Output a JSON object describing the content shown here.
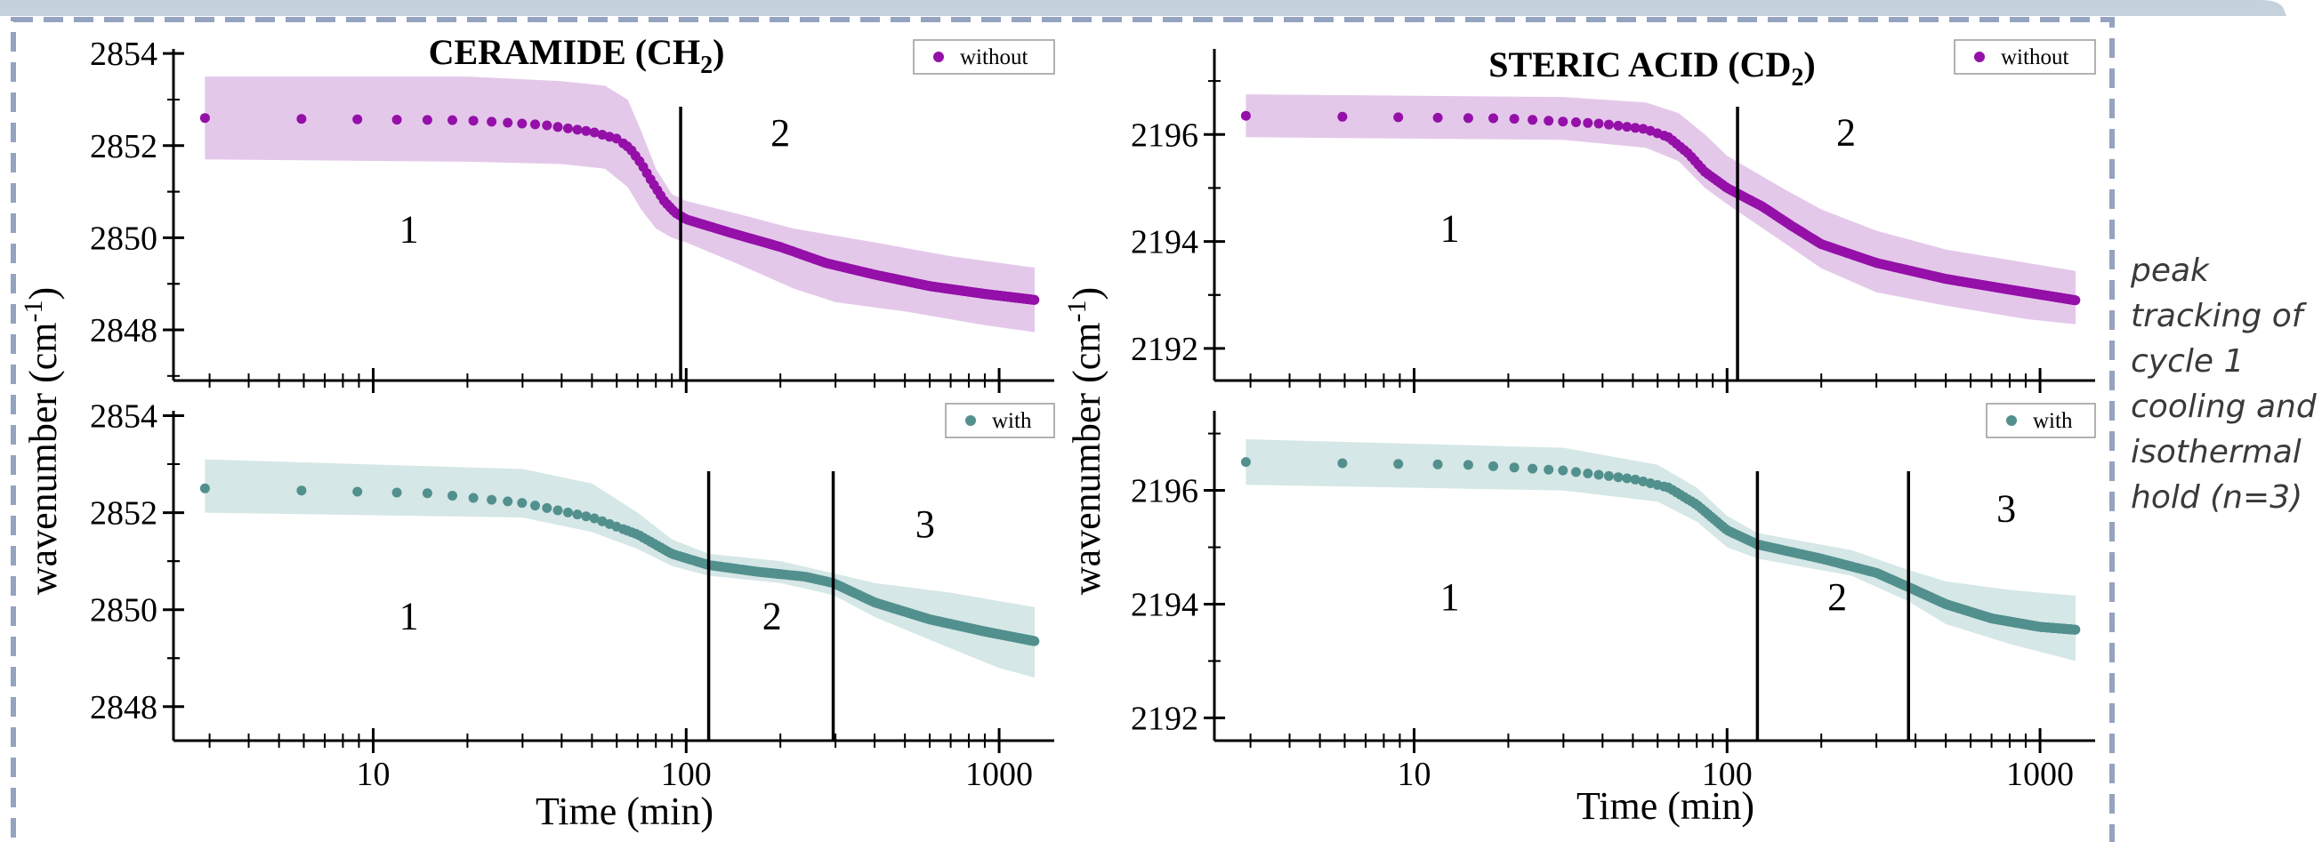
{
  "colors": {
    "without": "#9410a8",
    "without_band": "#e4c8ea",
    "with": "#52908e",
    "with_band": "#d5e7e6",
    "frame": "#94a3bf",
    "axis": "#000000"
  },
  "side_note": [
    "peak",
    "tracking of",
    "cycle 1",
    "cooling and",
    "isothermal",
    "hold (n=3)"
  ],
  "chart_data": [
    {
      "id": "ceramide_without",
      "type": "scatter",
      "title": "CERAMIDE (CH",
      "title_sub": "2",
      "title_close": ")",
      "legend": "without",
      "legend_placement": "top-right",
      "xscale": "log",
      "xlim": [
        2.3,
        1500
      ],
      "ylim": [
        2846.9,
        2854.1
      ],
      "yticks": [
        "2848",
        "2850",
        "2852",
        "2854"
      ],
      "xticks": [
        "10",
        "100",
        "1000"
      ],
      "xlabel": "",
      "boundaries": [
        96
      ],
      "regions": [
        {
          "label": "1",
          "x": 13,
          "y": 2849.9
        },
        {
          "label": "2",
          "x": 200,
          "y": 2852.0
        }
      ],
      "series": [
        {
          "name": "without",
          "color": "without",
          "band": "without_band",
          "curve": [
            [
              2.9,
              2852.6
            ],
            [
              20,
              2852.55
            ],
            [
              35,
              2852.45
            ],
            [
              50,
              2852.3
            ],
            [
              60,
              2852.15
            ],
            [
              66,
              2851.95
            ],
            [
              72,
              2851.6
            ],
            [
              78,
              2851.2
            ],
            [
              85,
              2850.8
            ],
            [
              92,
              2850.55
            ],
            [
              100,
              2850.4
            ],
            [
              140,
              2850.1
            ],
            [
              200,
              2849.8
            ],
            [
              280,
              2849.45
            ],
            [
              400,
              2849.2
            ],
            [
              600,
              2848.95
            ],
            [
              900,
              2848.78
            ],
            [
              1300,
              2848.65
            ]
          ],
          "band_hi": [
            [
              2.9,
              2853.5
            ],
            [
              20,
              2853.5
            ],
            [
              40,
              2853.4
            ],
            [
              55,
              2853.3
            ],
            [
              65,
              2853.0
            ],
            [
              72,
              2852.3
            ],
            [
              80,
              2851.5
            ],
            [
              90,
              2850.95
            ],
            [
              100,
              2850.8
            ],
            [
              150,
              2850.5
            ],
            [
              220,
              2850.2
            ],
            [
              400,
              2849.9
            ],
            [
              700,
              2849.6
            ],
            [
              1300,
              2849.35
            ]
          ],
          "band_lo": [
            [
              2.9,
              2851.7
            ],
            [
              20,
              2851.65
            ],
            [
              40,
              2851.6
            ],
            [
              55,
              2851.5
            ],
            [
              65,
              2851.1
            ],
            [
              72,
              2850.6
            ],
            [
              80,
              2850.2
            ],
            [
              90,
              2850.0
            ],
            [
              100,
              2849.9
            ],
            [
              150,
              2849.4
            ],
            [
              220,
              2848.9
            ],
            [
              300,
              2848.6
            ],
            [
              500,
              2848.4
            ],
            [
              900,
              2848.1
            ],
            [
              1300,
              2847.95
            ]
          ]
        }
      ]
    },
    {
      "id": "ceramide_with",
      "type": "scatter",
      "legend": "with",
      "legend_placement": "top-right",
      "xscale": "log",
      "xlim": [
        2.3,
        1500
      ],
      "ylim": [
        2847.3,
        2854.1
      ],
      "yticks": [
        "2848",
        "2850",
        "2852",
        "2854"
      ],
      "xticks": [
        "10",
        "100",
        "1000"
      ],
      "xlabel": "Time (min)",
      "boundaries": [
        118,
        295
      ],
      "regions": [
        {
          "label": "1",
          "x": 13,
          "y": 2849.6
        },
        {
          "label": "2",
          "x": 188,
          "y": 2849.6
        },
        {
          "label": "3",
          "x": 580,
          "y": 2851.5
        }
      ],
      "series": [
        {
          "name": "with",
          "color": "with",
          "band": "with_band",
          "curve": [
            [
              2.9,
              2852.5
            ],
            [
              15,
              2852.4
            ],
            [
              30,
              2852.2
            ],
            [
              50,
              2851.9
            ],
            [
              70,
              2851.55
            ],
            [
              90,
              2851.15
            ],
            [
              118,
              2850.92
            ],
            [
              170,
              2850.78
            ],
            [
              240,
              2850.68
            ],
            [
              295,
              2850.55
            ],
            [
              400,
              2850.15
            ],
            [
              600,
              2849.8
            ],
            [
              900,
              2849.55
            ],
            [
              1300,
              2849.35
            ]
          ],
          "band_hi": [
            [
              2.9,
              2853.1
            ],
            [
              30,
              2852.9
            ],
            [
              50,
              2852.6
            ],
            [
              70,
              2852.0
            ],
            [
              90,
              2851.45
            ],
            [
              118,
              2851.15
            ],
            [
              200,
              2851.0
            ],
            [
              295,
              2850.75
            ],
            [
              400,
              2850.55
            ],
            [
              700,
              2850.35
            ],
            [
              1300,
              2850.05
            ]
          ],
          "band_lo": [
            [
              2.9,
              2852.0
            ],
            [
              30,
              2851.9
            ],
            [
              50,
              2851.6
            ],
            [
              70,
              2851.25
            ],
            [
              90,
              2850.9
            ],
            [
              118,
              2850.7
            ],
            [
              200,
              2850.55
            ],
            [
              295,
              2850.3
            ],
            [
              400,
              2849.85
            ],
            [
              700,
              2849.2
            ],
            [
              1000,
              2848.8
            ],
            [
              1300,
              2848.6
            ]
          ]
        }
      ]
    },
    {
      "id": "steric_without",
      "type": "scatter",
      "title": "STERIC ACID (CD",
      "title_sub": "2",
      "title_close": ")",
      "legend": "without",
      "legend_placement": "top-right",
      "xscale": "log",
      "xlim": [
        2.3,
        1500
      ],
      "ylim": [
        2191.4,
        2197.6
      ],
      "yticks": [
        "2192",
        "2194",
        "2196"
      ],
      "xticks": [
        "10",
        "100",
        "1000"
      ],
      "xlabel": "",
      "boundaries": [
        108
      ],
      "regions": [
        {
          "label": "1",
          "x": 13,
          "y": 2194.0
        },
        {
          "label": "2",
          "x": 240,
          "y": 2195.8
        }
      ],
      "series": [
        {
          "name": "without",
          "color": "without",
          "band": "without_band",
          "curve": [
            [
              2.9,
              2196.35
            ],
            [
              20,
              2196.3
            ],
            [
              40,
              2196.2
            ],
            [
              55,
              2196.1
            ],
            [
              65,
              2195.95
            ],
            [
              75,
              2195.65
            ],
            [
              85,
              2195.3
            ],
            [
              100,
              2195.0
            ],
            [
              130,
              2194.65
            ],
            [
              160,
              2194.3
            ],
            [
              200,
              2193.95
            ],
            [
              300,
              2193.6
            ],
            [
              500,
              2193.3
            ],
            [
              800,
              2193.1
            ],
            [
              1300,
              2192.9
            ]
          ],
          "band_hi": [
            [
              2.9,
              2196.75
            ],
            [
              30,
              2196.7
            ],
            [
              55,
              2196.6
            ],
            [
              70,
              2196.4
            ],
            [
              85,
              2196.0
            ],
            [
              100,
              2195.6
            ],
            [
              150,
              2195.0
            ],
            [
              200,
              2194.6
            ],
            [
              300,
              2194.2
            ],
            [
              500,
              2193.85
            ],
            [
              1300,
              2193.45
            ]
          ],
          "band_lo": [
            [
              2.9,
              2195.95
            ],
            [
              30,
              2195.9
            ],
            [
              55,
              2195.75
            ],
            [
              70,
              2195.5
            ],
            [
              85,
              2195.0
            ],
            [
              100,
              2194.7
            ],
            [
              150,
              2194.0
            ],
            [
              200,
              2193.5
            ],
            [
              300,
              2193.05
            ],
            [
              500,
              2192.8
            ],
            [
              900,
              2192.55
            ],
            [
              1300,
              2192.45
            ]
          ]
        }
      ]
    },
    {
      "id": "steric_with",
      "type": "scatter",
      "legend": "with",
      "legend_placement": "top-right",
      "xscale": "log",
      "xlim": [
        2.3,
        1500
      ],
      "ylim": [
        2191.6,
        2197.4
      ],
      "yticks": [
        "2192",
        "2194",
        "2196"
      ],
      "xticks": [
        "10",
        "100",
        "1000"
      ],
      "xlabel": "Time (min)",
      "boundaries": [
        125,
        380
      ],
      "regions": [
        {
          "label": "1",
          "x": 13,
          "y": 2193.9
        },
        {
          "label": "2",
          "x": 225,
          "y": 2193.9
        },
        {
          "label": "3",
          "x": 780,
          "y": 2195.45
        }
      ],
      "series": [
        {
          "name": "with",
          "color": "with",
          "band": "with_band",
          "curve": [
            [
              2.9,
              2196.5
            ],
            [
              15,
              2196.45
            ],
            [
              30,
              2196.35
            ],
            [
              50,
              2196.2
            ],
            [
              65,
              2196.05
            ],
            [
              80,
              2195.75
            ],
            [
              100,
              2195.3
            ],
            [
              125,
              2195.05
            ],
            [
              200,
              2194.8
            ],
            [
              300,
              2194.55
            ],
            [
              380,
              2194.3
            ],
            [
              500,
              2194.0
            ],
            [
              700,
              2193.75
            ],
            [
              1000,
              2193.6
            ],
            [
              1300,
              2193.55
            ]
          ],
          "band_hi": [
            [
              2.9,
              2196.9
            ],
            [
              30,
              2196.75
            ],
            [
              60,
              2196.45
            ],
            [
              80,
              2196.05
            ],
            [
              100,
              2195.55
            ],
            [
              125,
              2195.25
            ],
            [
              250,
              2194.95
            ],
            [
              380,
              2194.6
            ],
            [
              500,
              2194.4
            ],
            [
              800,
              2194.25
            ],
            [
              1300,
              2194.15
            ]
          ],
          "band_lo": [
            [
              2.9,
              2196.1
            ],
            [
              30,
              2196.0
            ],
            [
              60,
              2195.8
            ],
            [
              80,
              2195.45
            ],
            [
              100,
              2195.0
            ],
            [
              125,
              2194.8
            ],
            [
              250,
              2194.5
            ],
            [
              380,
              2194.05
            ],
            [
              500,
              2193.65
            ],
            [
              800,
              2193.3
            ],
            [
              1300,
              2193.0
            ]
          ]
        }
      ]
    }
  ],
  "ylabel": "wavenumber (cm",
  "ylabel_sup": "-1",
  "ylabel_close": ")"
}
